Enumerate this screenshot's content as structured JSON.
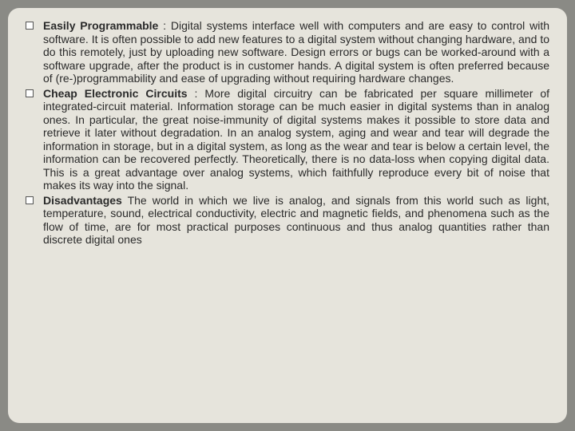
{
  "background_color": "#8a8a85",
  "slide_background": "#e6e4dc",
  "text_color": "#2a2a2a",
  "slide_border_radius": 14,
  "font_family": "Verdana, Geneva, sans-serif",
  "font_size": 14,
  "bullets": [
    {
      "title": "Easily Programmable",
      "separator": " : ",
      "body": "Digital systems interface well with computers and are easy to control with software. It is often possible to add new features to a digital system without changing hardware, and to do this remotely, just by uploading new software. Design errors or bugs can be worked-around with a software upgrade, after the product is in customer hands. A digital system is often preferred because of (re-)programmability and ease of upgrading without requiring hardware changes."
    },
    {
      "title": "Cheap Electronic Circuits",
      "separator": " : ",
      "body": "More digital circuitry can be fabricated per square millimeter of integrated-circuit material. Information storage can be much easier in digital systems than in analog ones. In particular, the great noise-immunity of digital systems makes it possible to store data and retrieve it later without degradation. In an analog system, aging and wear and tear will degrade the information in storage, but in a digital system, as long as the wear and tear is below a certain level, the information can be recovered perfectly. Theoretically, there is no data-loss when copying digital data. This is a great advantage over analog systems, which faithfully reproduce every bit of noise that makes its way into the signal."
    },
    {
      "title": "Disadvantages",
      "separator": " ",
      "body": "The world in which we live is analog, and signals from this world such as light, temperature, sound, electrical conductivity, electric and magnetic fields, and phenomena such as the flow of time, are for most practical purposes continuous and thus analog quantities rather than discrete digital ones"
    }
  ]
}
